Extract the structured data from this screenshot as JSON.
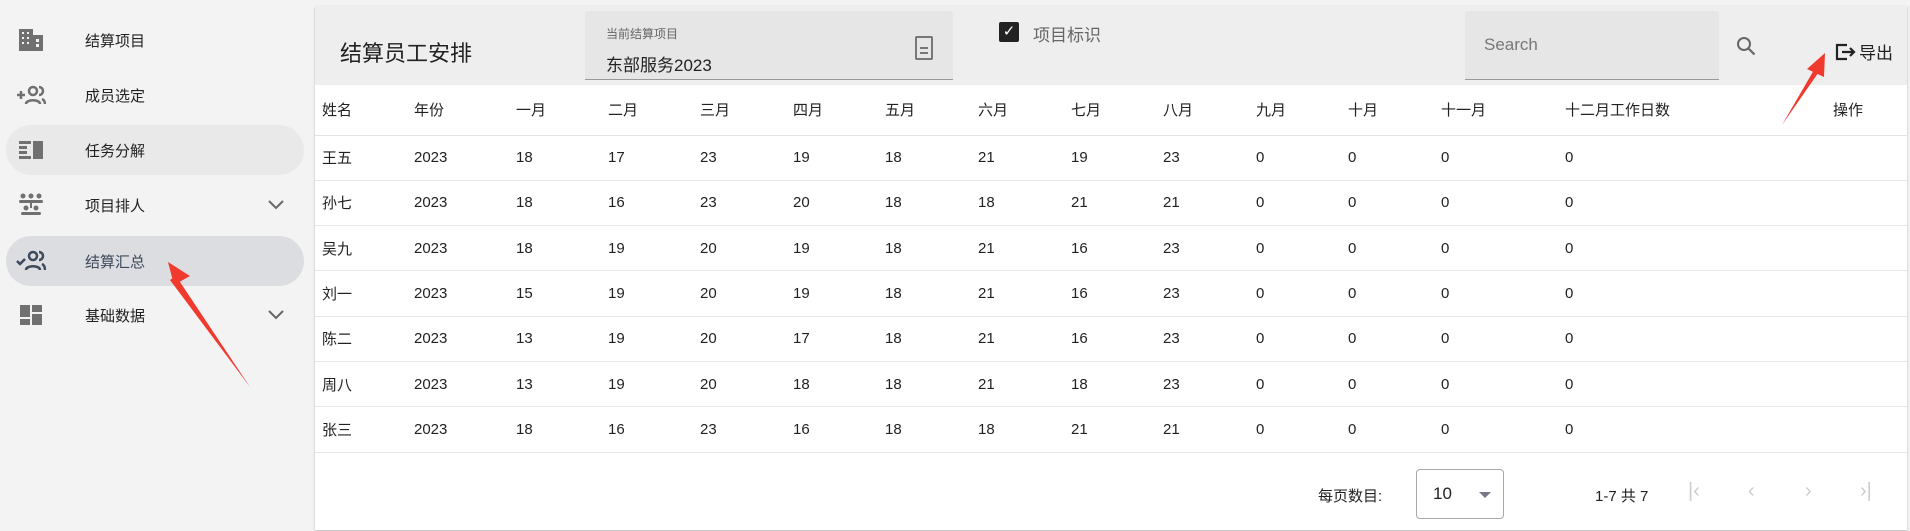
{
  "sidebar": {
    "items": [
      {
        "label": "结算项目",
        "icon": "building-icon"
      },
      {
        "label": "成员选定",
        "icon": "add-group-icon"
      },
      {
        "label": "任务分解",
        "icon": "list-columns-icon"
      },
      {
        "label": "项目排人",
        "icon": "groups-icon",
        "expandable": true
      },
      {
        "label": "结算汇总",
        "icon": "group-check-icon",
        "active": true
      },
      {
        "label": "基础数据",
        "icon": "dashboard-icon",
        "expandable": true
      }
    ]
  },
  "header": {
    "title": "结算员工安排",
    "project_label": "当前结算项目",
    "project_value": "东部服务2023",
    "checkbox_label": "项目标识",
    "checkbox_checked": true,
    "search_placeholder": "Search",
    "export_label": "导出"
  },
  "table": {
    "columns": [
      "姓名",
      "年份",
      "一月",
      "二月",
      "三月",
      "四月",
      "五月",
      "六月",
      "七月",
      "八月",
      "九月",
      "十月",
      "十一月",
      "十二月工作日数",
      "操作"
    ],
    "rows": [
      [
        "王五",
        "2023",
        "18",
        "17",
        "23",
        "19",
        "18",
        "21",
        "19",
        "23",
        "0",
        "0",
        "0",
        "0",
        ""
      ],
      [
        "孙七",
        "2023",
        "18",
        "16",
        "23",
        "20",
        "18",
        "18",
        "21",
        "21",
        "0",
        "0",
        "0",
        "0",
        ""
      ],
      [
        "吴九",
        "2023",
        "18",
        "19",
        "20",
        "19",
        "18",
        "21",
        "16",
        "23",
        "0",
        "0",
        "0",
        "0",
        ""
      ],
      [
        "刘一",
        "2023",
        "15",
        "19",
        "20",
        "19",
        "18",
        "21",
        "16",
        "23",
        "0",
        "0",
        "0",
        "0",
        ""
      ],
      [
        "陈二",
        "2023",
        "13",
        "19",
        "20",
        "17",
        "18",
        "21",
        "16",
        "23",
        "0",
        "0",
        "0",
        "0",
        ""
      ],
      [
        "周八",
        "2023",
        "13",
        "19",
        "20",
        "18",
        "18",
        "21",
        "18",
        "23",
        "0",
        "0",
        "0",
        "0",
        ""
      ],
      [
        "张三",
        "2023",
        "18",
        "16",
        "23",
        "16",
        "18",
        "18",
        "21",
        "21",
        "0",
        "0",
        "0",
        "0",
        ""
      ]
    ]
  },
  "footer": {
    "per_page_label": "每页数目:",
    "per_page_value": "10",
    "range": "1-7 共 7"
  },
  "colors": {
    "annotation_arrow": "#f03a2e",
    "active_nav": "#dcdde0"
  }
}
